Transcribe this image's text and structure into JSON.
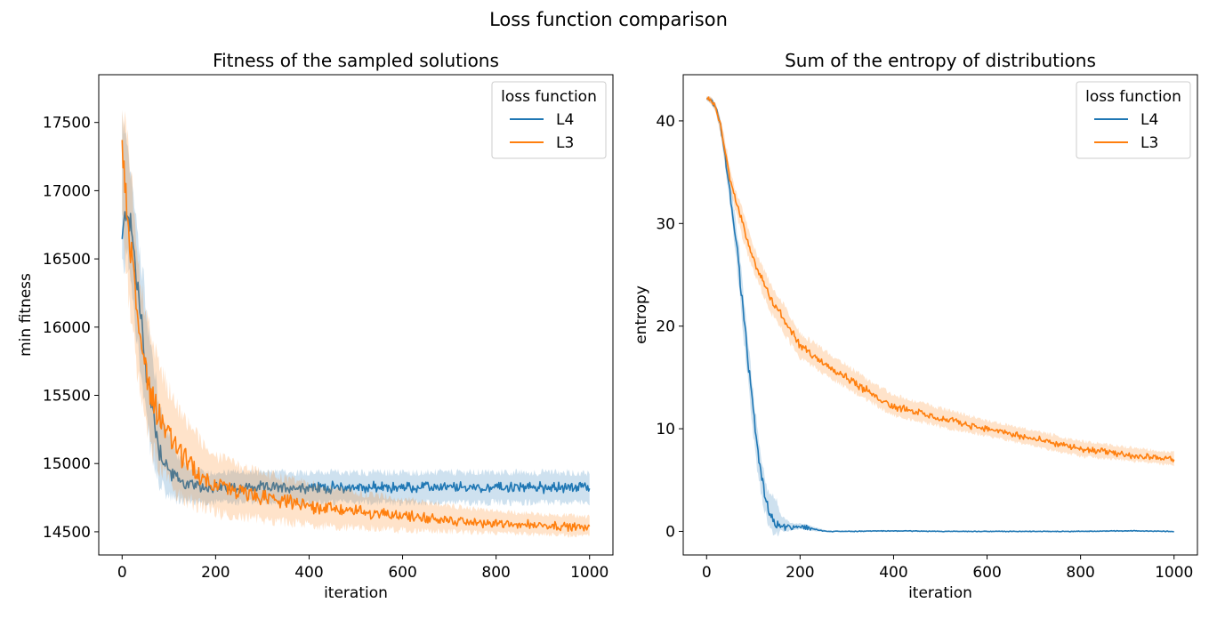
{
  "figure": {
    "suptitle": "Loss function comparison"
  },
  "chart_data": [
    {
      "type": "line",
      "title": "Fitness of the sampled solutions",
      "xlabel": "iteration",
      "ylabel": "min fitness",
      "xlim": [
        -50,
        1050
      ],
      "ylim": [
        14330,
        17850
      ],
      "xticks": [
        0,
        200,
        400,
        600,
        800,
        1000
      ],
      "yticks": [
        14500,
        15000,
        15500,
        16000,
        16500,
        17000,
        17500
      ],
      "grid": false,
      "legend": {
        "title": "loss function",
        "position": "top-right"
      },
      "series": [
        {
          "name": "L4",
          "color": "#1f77b4",
          "x": [
            0,
            10,
            20,
            30,
            40,
            50,
            60,
            70,
            80,
            100,
            120,
            140,
            160,
            180,
            200,
            250,
            300,
            400,
            500,
            600,
            700,
            800,
            900,
            1000
          ],
          "y": [
            16600,
            16900,
            16700,
            16400,
            16050,
            15750,
            15500,
            15300,
            15100,
            14950,
            14880,
            14850,
            14830,
            14825,
            14825,
            14825,
            14825,
            14825,
            14825,
            14825,
            14825,
            14825,
            14825,
            14825
          ],
          "band_low": [
            16350,
            16550,
            16350,
            16000,
            15650,
            15350,
            15150,
            14950,
            14850,
            14750,
            14730,
            14720,
            14720,
            14715,
            14715,
            14715,
            14715,
            14715,
            14715,
            14715,
            14715,
            14715,
            14715,
            14715
          ],
          "band_high": [
            17550,
            17300,
            17050,
            16800,
            16500,
            16200,
            15900,
            15650,
            15400,
            15200,
            15050,
            14980,
            14940,
            14935,
            14935,
            14935,
            14935,
            14935,
            14935,
            14935,
            14935,
            14935,
            14935,
            14935
          ]
        },
        {
          "name": "L3",
          "color": "#ff7f0e",
          "x": [
            0,
            10,
            20,
            30,
            40,
            50,
            60,
            70,
            80,
            100,
            120,
            140,
            160,
            180,
            200,
            250,
            300,
            400,
            500,
            600,
            700,
            800,
            900,
            1000
          ],
          "y": [
            17300,
            16900,
            16500,
            16200,
            15900,
            15700,
            15550,
            15450,
            15350,
            15200,
            15100,
            15000,
            14930,
            14880,
            14840,
            14790,
            14750,
            14690,
            14650,
            14620,
            14580,
            14560,
            14550,
            14530
          ],
          "band_low": [
            16900,
            16400,
            16000,
            15750,
            15450,
            15300,
            15150,
            15050,
            14970,
            14870,
            14780,
            14730,
            14700,
            14670,
            14640,
            14610,
            14590,
            14550,
            14530,
            14510,
            14500,
            14490,
            14480,
            14470
          ],
          "band_high": [
            17650,
            17400,
            17050,
            16700,
            16350,
            16100,
            15950,
            15850,
            15700,
            15550,
            15400,
            15300,
            15200,
            15100,
            15050,
            14980,
            14930,
            14850,
            14790,
            14740,
            14690,
            14650,
            14630,
            14610
          ]
        }
      ]
    },
    {
      "type": "line",
      "title": "Sum of the entropy of distributions",
      "xlabel": "iteration",
      "ylabel": "entropy",
      "xlim": [
        -50,
        1050
      ],
      "ylim": [
        -2.3,
        44.5
      ],
      "xticks": [
        0,
        200,
        400,
        600,
        800,
        1000
      ],
      "yticks": [
        0,
        10,
        20,
        30,
        40
      ],
      "grid": false,
      "legend": {
        "title": "loss function",
        "position": "top-right"
      },
      "series": [
        {
          "name": "L4",
          "color": "#1f77b4",
          "x": [
            0,
            10,
            20,
            30,
            40,
            50,
            60,
            70,
            80,
            90,
            100,
            110,
            120,
            130,
            140,
            150,
            160,
            180,
            200,
            220,
            240,
            260,
            300,
            400,
            500,
            600,
            700,
            800,
            900,
            1000
          ],
          "y": [
            42.2,
            42.0,
            41.2,
            39.5,
            36.5,
            33.0,
            29.5,
            25.5,
            20.5,
            16.0,
            11.5,
            7.5,
            4.5,
            2.5,
            1.3,
            0.8,
            0.5,
            0.4,
            0.5,
            0.3,
            0.1,
            0.0,
            0.0,
            0.05,
            0.0,
            0.0,
            0.0,
            0.0,
            0.05,
            0.0
          ],
          "band_low": [
            42.0,
            41.7,
            40.8,
            38.8,
            35.5,
            32.0,
            28.0,
            23.5,
            18.5,
            14.0,
            9.5,
            5.5,
            2.8,
            1.0,
            0.0,
            -0.2,
            0.0,
            0.1,
            0.2,
            0.1,
            0.0,
            -0.05,
            -0.05,
            0.0,
            -0.05,
            -0.05,
            -0.05,
            -0.05,
            0.0,
            -0.05
          ],
          "band_high": [
            42.4,
            42.3,
            41.6,
            40.1,
            37.5,
            34.2,
            31.0,
            27.5,
            22.5,
            18.0,
            13.5,
            9.5,
            6.5,
            4.0,
            3.5,
            3.0,
            1.5,
            0.8,
            0.8,
            0.6,
            0.3,
            0.05,
            0.05,
            0.1,
            0.05,
            0.05,
            0.05,
            0.05,
            0.1,
            0.05
          ]
        },
        {
          "name": "L3",
          "color": "#ff7f0e",
          "x": [
            0,
            10,
            20,
            30,
            40,
            50,
            60,
            70,
            80,
            100,
            120,
            140,
            160,
            180,
            200,
            250,
            300,
            350,
            400,
            500,
            600,
            700,
            800,
            900,
            1000
          ],
          "y": [
            42.2,
            42.0,
            41.2,
            39.5,
            37.0,
            34.5,
            32.5,
            31.0,
            29.5,
            26.5,
            24.5,
            22.5,
            21.0,
            19.5,
            18.0,
            16.5,
            15.0,
            13.5,
            12.2,
            11.0,
            10.0,
            9.0,
            8.0,
            7.5,
            7.0
          ],
          "band_low": [
            42.0,
            41.7,
            40.8,
            38.8,
            36.0,
            33.5,
            31.5,
            29.8,
            28.2,
            25.3,
            23.2,
            21.2,
            19.7,
            18.3,
            16.9,
            15.4,
            14.0,
            12.6,
            11.3,
            10.2,
            9.3,
            8.3,
            7.3,
            6.9,
            6.4
          ],
          "band_high": [
            42.4,
            42.3,
            41.6,
            40.2,
            38.0,
            35.5,
            33.5,
            32.2,
            30.8,
            27.8,
            25.8,
            23.8,
            22.4,
            20.9,
            19.3,
            17.7,
            16.2,
            14.6,
            13.3,
            12.0,
            10.8,
            9.8,
            8.8,
            8.2,
            7.7
          ]
        }
      ]
    }
  ]
}
